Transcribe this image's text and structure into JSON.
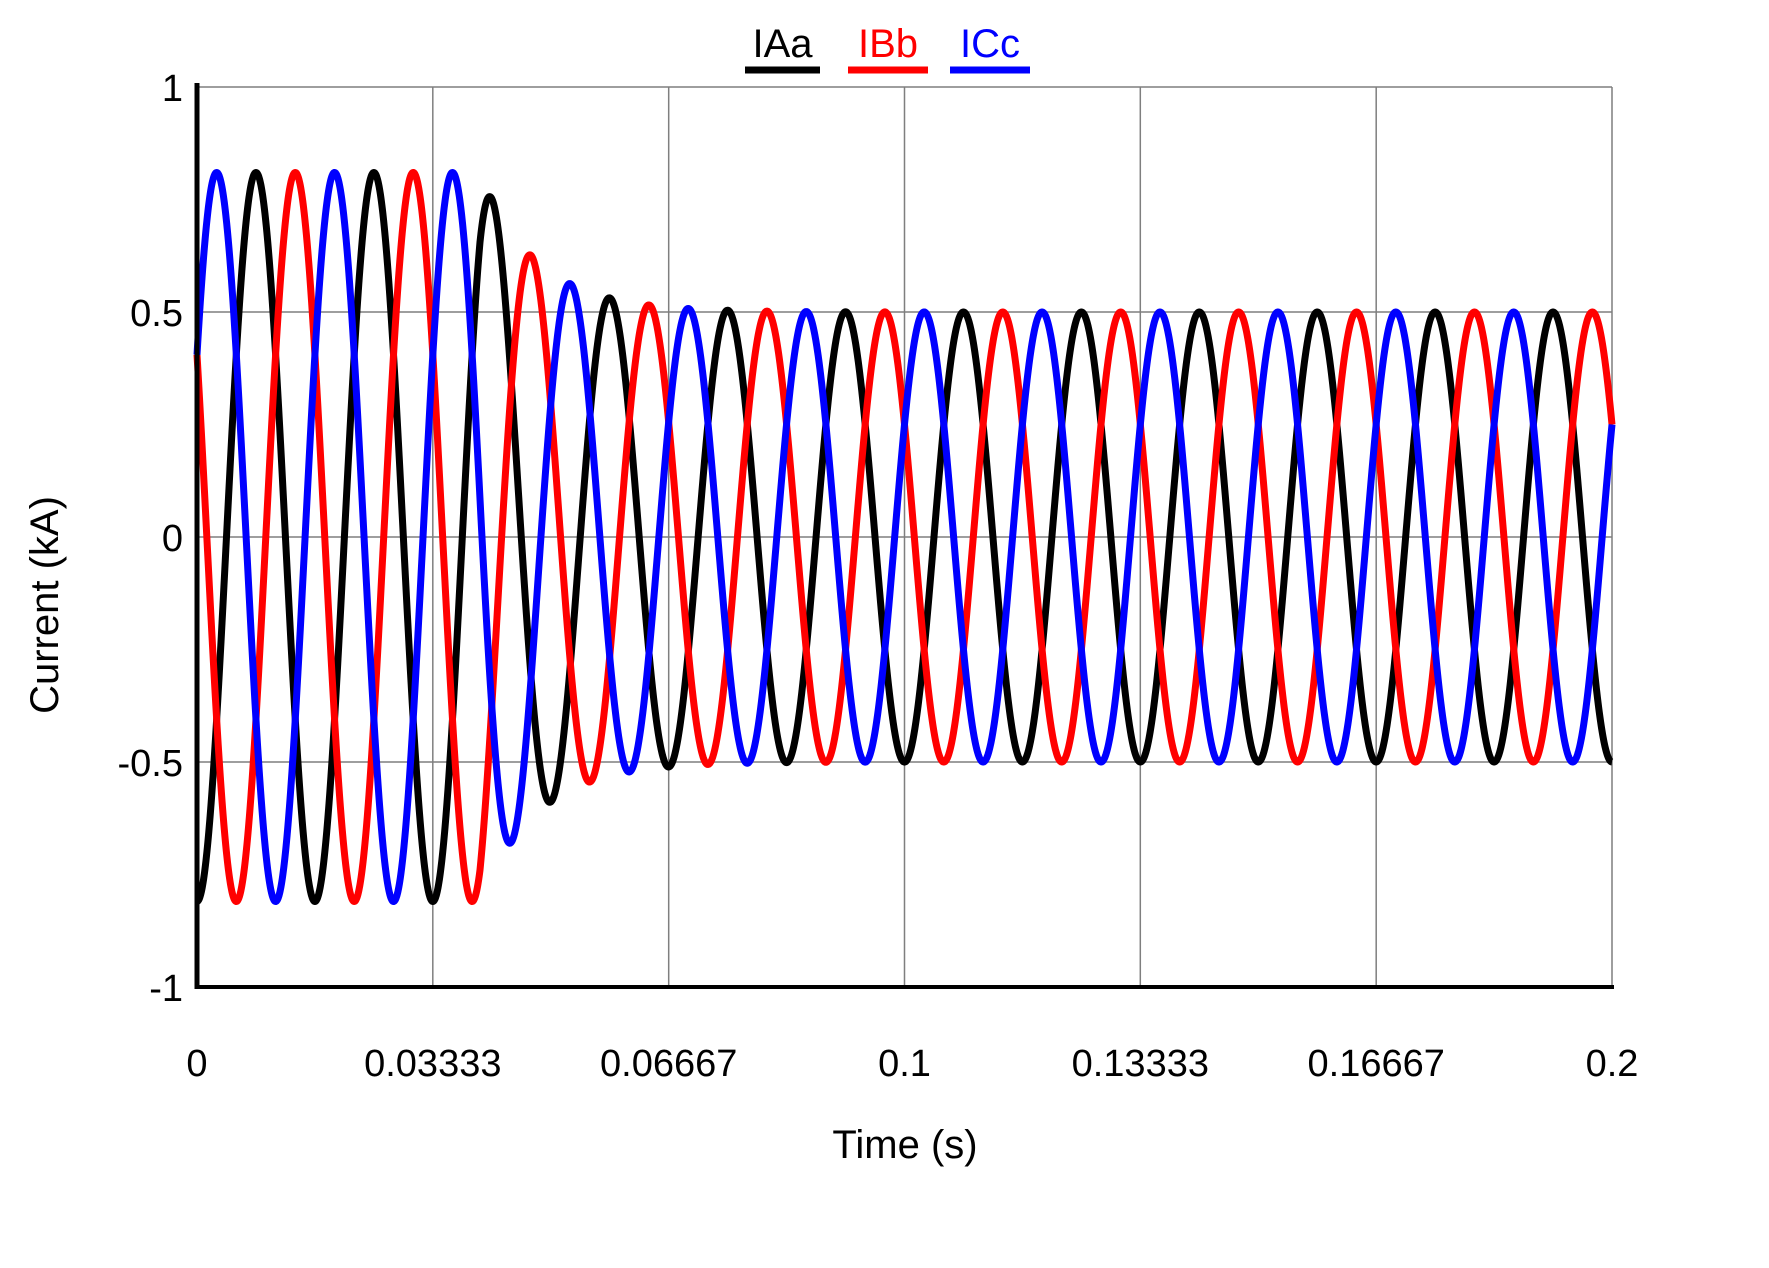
{
  "chart_data": {
    "type": "line",
    "title": "",
    "xlabel": "Time (s)",
    "ylabel": "Current (kA)",
    "xlim": [
      0,
      0.2
    ],
    "ylim": [
      -1,
      1
    ],
    "xticks": [
      0,
      0.03333,
      0.06667,
      0.1,
      0.13333,
      0.16667,
      0.2
    ],
    "xtick_labels": [
      "0",
      "0.03333",
      "0.06667",
      "0.1",
      "0.13333",
      "0.16667",
      "0.2"
    ],
    "yticks": [
      -1,
      -0.5,
      0,
      0.5,
      1
    ],
    "ytick_labels": [
      "-1",
      "-0.5",
      "0",
      "0.5",
      "1"
    ],
    "grid": true,
    "legend_position": "top-center",
    "frequency_hz": 60,
    "transient": {
      "initial_amplitude": 0.81,
      "steady_amplitude": 0.5,
      "decay_start_s": 0.04,
      "decay_time_constant_s": 0.008
    },
    "series": [
      {
        "name": "IAa",
        "color": "#000000",
        "phase_deg": -90
      },
      {
        "name": "IBb",
        "color": "#ff0000",
        "phase_deg": 150
      },
      {
        "name": "ICc",
        "color": "#0000ff",
        "phase_deg": 30
      }
    ]
  }
}
